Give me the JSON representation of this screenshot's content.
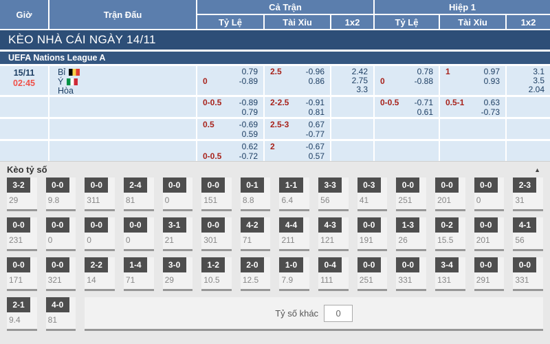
{
  "colors": {
    "header_bg": "#5b7ead",
    "banner_bg": "#2d4e77",
    "league_bg": "#345680",
    "row_bg": "#dce9f5",
    "handicap_red": "#a8231b",
    "time_red": "#f05149",
    "odds_navy": "#1d3e63",
    "section_bg": "#e8e8e8",
    "score_box_bg": "#4e4e4e"
  },
  "header": {
    "time_col": "Giờ",
    "match_col": "Trận Đấu",
    "full_time_group": "Cả Trận",
    "first_half_group": "Hiệp 1",
    "sub_cols": [
      "Tỷ Lệ",
      "Tài Xỉu",
      "1x2"
    ]
  },
  "banner": {
    "title": "KÈO NHÀ CÁI NGÀY 14/11"
  },
  "league": {
    "name": "UEFA Nations League A"
  },
  "match": {
    "date": "15/11",
    "time": "02:45",
    "home": "Bỉ",
    "away": "Ý",
    "draw": "Hòa",
    "home_flag": "belgium-flag",
    "away_flag": "italy-flag"
  },
  "odds_rows": [
    {
      "hdp_ft": {
        "t_l": "",
        "t_r": "0.79",
        "b_l": "0",
        "b_r": "-0.89"
      },
      "ou_ft": {
        "t_l": "2.5",
        "t_r": "-0.96",
        "b_l": "",
        "b_r": "0.86"
      },
      "x12_ft": [
        "2.42",
        "2.75",
        "3.3"
      ],
      "hdp_h1": {
        "t_l": "",
        "t_r": "0.78",
        "b_l": "0",
        "b_r": "-0.88"
      },
      "ou_h1": {
        "t_l": "1",
        "t_r": "0.97",
        "b_l": "",
        "b_r": "0.93"
      },
      "x12_h1": [
        "3.1",
        "3.5",
        "2.04"
      ]
    },
    {
      "hdp_ft": {
        "t_l": "0-0.5",
        "t_r": "-0.89",
        "b_l": "",
        "b_r": "0.79"
      },
      "ou_ft": {
        "t_l": "2-2.5",
        "t_r": "-0.91",
        "b_l": "",
        "b_r": "0.81"
      },
      "x12_ft": [],
      "hdp_h1": {
        "t_l": "0-0.5",
        "t_r": "-0.71",
        "b_l": "",
        "b_r": "0.61"
      },
      "ou_h1": {
        "t_l": "0.5-1",
        "t_r": "0.63",
        "b_l": "",
        "b_r": "-0.73"
      },
      "x12_h1": []
    },
    {
      "hdp_ft": {
        "t_l": "0.5",
        "t_r": "-0.69",
        "b_l": "",
        "b_r": "0.59"
      },
      "ou_ft": {
        "t_l": "2.5-3",
        "t_r": "0.67",
        "b_l": "",
        "b_r": "-0.77"
      },
      "x12_ft": [],
      "hdp_h1": {
        "t_l": "",
        "t_r": "",
        "b_l": "",
        "b_r": ""
      },
      "ou_h1": {
        "t_l": "",
        "t_r": "",
        "b_l": "",
        "b_r": ""
      },
      "x12_h1": []
    },
    {
      "hdp_ft": {
        "t_l": "",
        "t_r": "0.62",
        "b_l": "0-0.5",
        "b_r": "-0.72"
      },
      "ou_ft": {
        "t_l": "2",
        "t_r": "-0.67",
        "b_l": "",
        "b_r": "0.57"
      },
      "x12_ft": [],
      "hdp_h1": {
        "t_l": "",
        "t_r": "",
        "b_l": "",
        "b_r": ""
      },
      "ou_h1": {
        "t_l": "",
        "t_r": "",
        "b_l": "",
        "b_r": ""
      },
      "x12_h1": []
    }
  ],
  "score_section": {
    "title": "Kèo tỷ số",
    "collapse_icon": "▲",
    "rows": [
      [
        {
          "s": "3-2",
          "v": "29"
        },
        {
          "s": "0-0",
          "v": "9.8"
        },
        {
          "s": "0-0",
          "v": "311"
        },
        {
          "s": "2-4",
          "v": "81"
        },
        {
          "s": "0-0",
          "v": "0"
        },
        {
          "s": "0-0",
          "v": "151"
        },
        {
          "s": "0-1",
          "v": "8.8"
        },
        {
          "s": "1-1",
          "v": "6.4"
        },
        {
          "s": "3-3",
          "v": "56"
        },
        {
          "s": "0-3",
          "v": "41"
        },
        {
          "s": "0-0",
          "v": "251"
        },
        {
          "s": "0-0",
          "v": "201"
        },
        {
          "s": "0-0",
          "v": "0"
        },
        {
          "s": "2-3",
          "v": "31"
        }
      ],
      [
        {
          "s": "0-0",
          "v": "231"
        },
        {
          "s": "0-0",
          "v": "0"
        },
        {
          "s": "0-0",
          "v": "0"
        },
        {
          "s": "0-0",
          "v": "0"
        },
        {
          "s": "3-1",
          "v": "21"
        },
        {
          "s": "0-0",
          "v": "301"
        },
        {
          "s": "4-2",
          "v": "71"
        },
        {
          "s": "4-4",
          "v": "211"
        },
        {
          "s": "4-3",
          "v": "121"
        },
        {
          "s": "0-0",
          "v": "191"
        },
        {
          "s": "1-3",
          "v": "26"
        },
        {
          "s": "0-2",
          "v": "15.5"
        },
        {
          "s": "0-0",
          "v": "201"
        },
        {
          "s": "4-1",
          "v": "56"
        }
      ],
      [
        {
          "s": "0-0",
          "v": "171"
        },
        {
          "s": "0-0",
          "v": "321"
        },
        {
          "s": "2-2",
          "v": "14"
        },
        {
          "s": "1-4",
          "v": "71"
        },
        {
          "s": "3-0",
          "v": "29"
        },
        {
          "s": "1-2",
          "v": "10.5"
        },
        {
          "s": "2-0",
          "v": "12.5"
        },
        {
          "s": "1-0",
          "v": "7.9"
        },
        {
          "s": "0-4",
          "v": "111"
        },
        {
          "s": "0-0",
          "v": "251"
        },
        {
          "s": "0-0",
          "v": "331"
        },
        {
          "s": "3-4",
          "v": "131"
        },
        {
          "s": "0-0",
          "v": "291"
        },
        {
          "s": "0-0",
          "v": "331"
        }
      ]
    ],
    "row4": [
      {
        "s": "2-1",
        "v": "9.4"
      },
      {
        "s": "4-0",
        "v": "81"
      }
    ],
    "other": {
      "label": "Tỷ số khác",
      "value": "0"
    }
  }
}
